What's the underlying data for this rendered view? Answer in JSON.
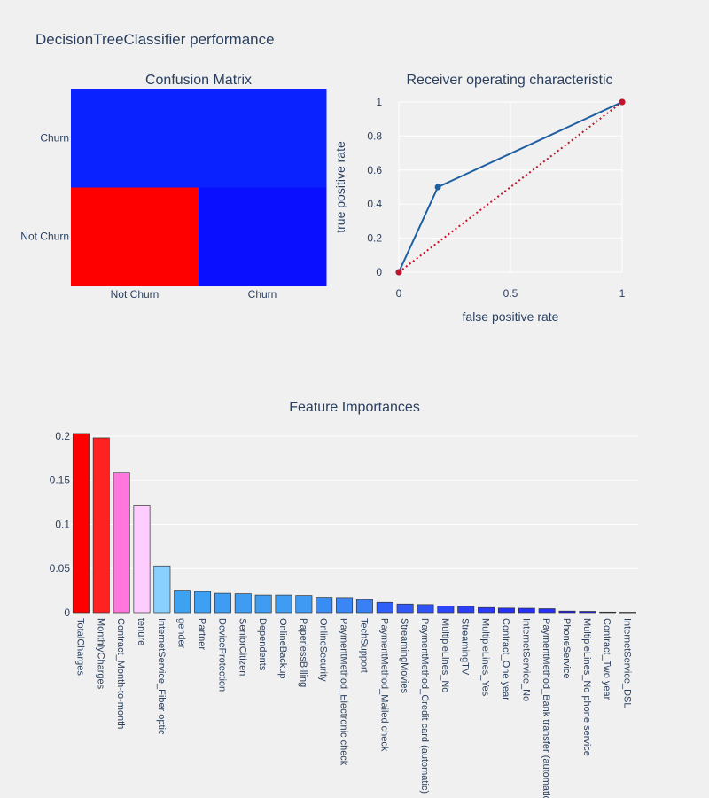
{
  "title": "DecisionTreeClassifier performance",
  "chart_data": [
    {
      "type": "heatmap",
      "title": "Confusion Matrix",
      "x_labels": [
        "Not Churn",
        "Churn"
      ],
      "y_labels": [
        "Not Churn",
        "Churn"
      ],
      "cell_colors": [
        [
          "#ff0000",
          "#0a10ff"
        ],
        [
          "#0a22ff",
          "#0a22ff"
        ]
      ]
    },
    {
      "type": "line",
      "title": "Receiver operating characteristic",
      "xlabel": "false positive rate",
      "ylabel": "true positive rate",
      "xlim": [
        0,
        1
      ],
      "ylim": [
        0,
        1
      ],
      "x_ticks": [
        0,
        0.5,
        1
      ],
      "x_tick_labels": [
        "0",
        "0.5",
        "1"
      ],
      "y_ticks": [
        0,
        0.2,
        0.4,
        0.6,
        0.8,
        1
      ],
      "y_tick_labels": [
        "0",
        "0.2",
        "0.4",
        "0.6",
        "0.8",
        "1"
      ],
      "series": [
        {
          "x": [
            0,
            0.175,
            1
          ],
          "y": [
            0,
            0.5,
            1
          ],
          "color": "#1f5fa0",
          "dash": "solid"
        },
        {
          "x": [
            0,
            1
          ],
          "y": [
            0,
            1
          ],
          "color": "#c0142c",
          "dash": "dot"
        }
      ]
    },
    {
      "type": "bar",
      "title": "Feature Importances",
      "ylim": [
        0,
        0.21
      ],
      "y_ticks": [
        0,
        0.05,
        0.1,
        0.15,
        0.2
      ],
      "y_tick_labels": [
        "0",
        "0.05",
        "0.1",
        "0.15",
        "0.2"
      ],
      "categories": [
        "TotalCharges",
        "MonthlyCharges",
        "Contract_Month-to-month",
        "tenure",
        "InternetService_Fiber optic",
        "gender",
        "Partner",
        "DeviceProtection",
        "SeniorCitizen",
        "Dependents",
        "OnlineBackup",
        "PaperlessBilling",
        "OnlineSecurity",
        "PaymentMethod_Electronic check",
        "TechSupport",
        "PaymentMethod_Mailed check",
        "StreamingMovies",
        "PaymentMethod_Credit card (automatic)",
        "MultipleLines_No",
        "StreamingTV",
        "MultipleLines_Yes",
        "Contract_One year",
        "InternetService_No",
        "PaymentMethod_Bank transfer (automatic)",
        "PhoneService",
        "MultipleLines_No phone service",
        "Contract_Two year",
        "InternetService_DSL"
      ],
      "values": [
        0.203,
        0.198,
        0.159,
        0.121,
        0.053,
        0.0255,
        0.024,
        0.022,
        0.0215,
        0.02,
        0.02,
        0.0195,
        0.0175,
        0.0172,
        0.015,
        0.0118,
        0.0098,
        0.0092,
        0.0075,
        0.0072,
        0.0058,
        0.0052,
        0.005,
        0.0045,
        0.0018,
        0.0015,
        0.0007,
        0.0005
      ],
      "colors": [
        "#ff0000",
        "#ff2222",
        "#ff77dd",
        "#ffccff",
        "#8ad0ff",
        "#3ea2f2",
        "#3ea0f2",
        "#3e9cf2",
        "#3e9cf2",
        "#3e9cf2",
        "#3e9cf2",
        "#3e9af2",
        "#3a8cf5",
        "#3a86f5",
        "#3a80f5",
        "#2f5ff7",
        "#2f58f7",
        "#2f52f7",
        "#2a46f8",
        "#2a40f8",
        "#2a3af8",
        "#2530f9",
        "#2530f9",
        "#2530f9",
        "#2020fa",
        "#2020fa",
        "#1a1afa",
        "#1a1afa"
      ]
    }
  ]
}
